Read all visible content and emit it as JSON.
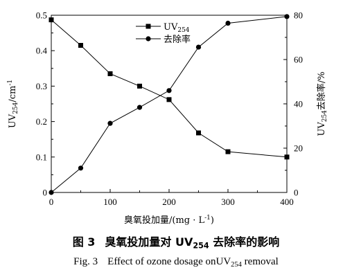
{
  "chart_data": {
    "type": "line",
    "x": [
      0,
      50,
      100,
      150,
      200,
      250,
      300,
      400
    ],
    "xlabel": "臭氧投加量/(mg · L",
    "xlabel_sup": "-1",
    "xlabel_end": ")",
    "xlim": [
      0,
      400
    ],
    "xticks": [
      "0",
      "100",
      "200",
      "300",
      "400"
    ],
    "ylabel_left": {
      "main": "UV",
      "sub": "254",
      "rest": "/cm",
      "sup": "-1"
    },
    "ylim_left": [
      0,
      0.5
    ],
    "yticks_left": [
      "0",
      "0.1",
      "0.2",
      "0.3",
      "0.4",
      "0.5"
    ],
    "ylabel_right": {
      "main": "UV",
      "sub": "254",
      "rest": "去除率/%"
    },
    "ylim_right": [
      0,
      80
    ],
    "yticks_right": [
      "0",
      "20",
      "40",
      "60",
      "80"
    ],
    "series": [
      {
        "name": "UV",
        "name_sub": "254",
        "axis": "left",
        "marker": "square",
        "values": [
          0.487,
          0.415,
          0.335,
          0.3,
          0.262,
          0.168,
          0.115,
          0.1
        ]
      },
      {
        "name": "去除率",
        "axis": "right",
        "marker": "circle",
        "values": [
          0,
          11.0,
          31.2,
          38.4,
          46.0,
          65.6,
          76.4,
          79.4
        ]
      }
    ],
    "grid": false,
    "legend": "top-center",
    "color": "#000000"
  },
  "caption": {
    "zh_num": "图 3",
    "zh_pre": "臭氧投加量对 UV",
    "zh_sub": "254",
    "zh_post": " 去除率的影响",
    "en_num": "Fig. 3",
    "en_pre": "Effect of ozone dosage onUV",
    "en_sub": "254",
    "en_post": " removal"
  }
}
